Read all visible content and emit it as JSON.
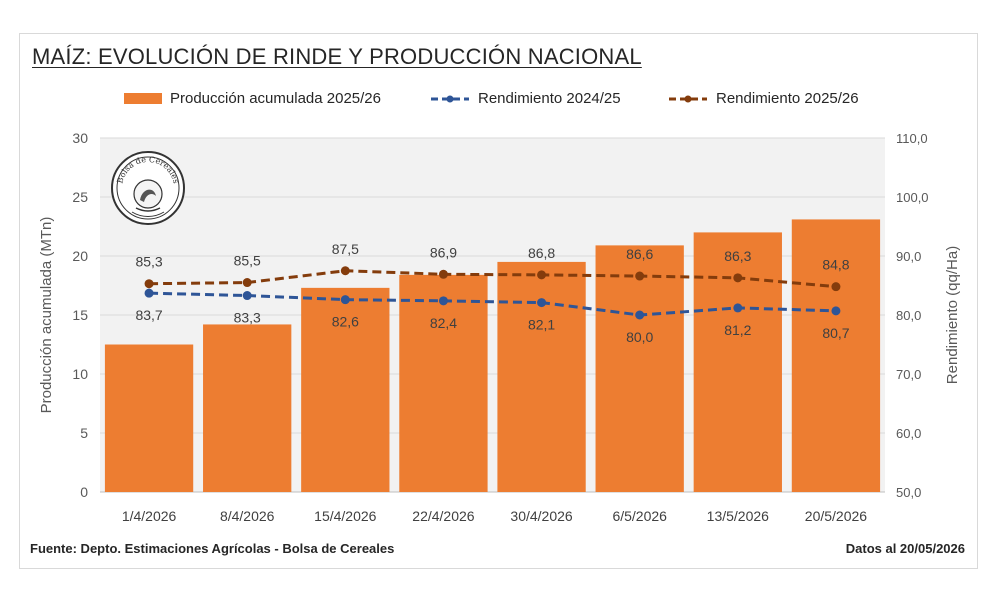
{
  "title": "MAÍZ: EVOLUCIÓN DE RINDE Y PRODUCCIÓN NACIONAL",
  "legend": {
    "bars": "Producción acumulada 2025/26",
    "line1": "Rendimiento 2024/25",
    "line2": "Rendimiento 2025/26"
  },
  "seal_text": "Bolsa de Cereales",
  "footer": {
    "source": "Fuente: Depto. Estimaciones Agrícolas - Bolsa de Cereales",
    "date": "Datos al 20/05/2026"
  },
  "colors": {
    "bars": "#ed7d31",
    "line_2024_25": "#2e5597",
    "line_2025_26": "#843c0c",
    "grid": "#d9d9d9",
    "plot_bg": "#f2f2f2"
  },
  "chart_data": {
    "type": "bar",
    "categories": [
      "1/4/2026",
      "8/4/2026",
      "15/4/2026",
      "22/4/2026",
      "30/4/2026",
      "6/5/2026",
      "13/5/2026",
      "20/5/2026"
    ],
    "ylabel": "Producción acumulada (MTn)",
    "y2label": "Rendimiento (qq/Ha)",
    "ylim": [
      0,
      30
    ],
    "y2lim": [
      50,
      110
    ],
    "yticks": [
      "0",
      "5",
      "10",
      "15",
      "20",
      "25",
      "30"
    ],
    "y2ticks": [
      "50,0",
      "60,0",
      "70,0",
      "80,0",
      "90,0",
      "100,0",
      "110,0"
    ],
    "grid": true,
    "legend_position": "top",
    "series": [
      {
        "name": "Producción acumulada 2025/26",
        "type": "bar",
        "axis": "left",
        "values": [
          12.5,
          14.2,
          17.3,
          18.4,
          19.5,
          20.9,
          22.0,
          23.1
        ]
      },
      {
        "name": "Rendimiento 2024/25",
        "type": "line",
        "axis": "right",
        "values": [
          83.7,
          83.3,
          82.6,
          82.4,
          82.1,
          80.0,
          81.2,
          80.7
        ],
        "labels": [
          "83,7",
          "83,3",
          "82,6",
          "82,4",
          "82,1",
          "80,0",
          "81,2",
          "80,7"
        ]
      },
      {
        "name": "Rendimiento 2025/26",
        "type": "line",
        "axis": "right",
        "values": [
          85.3,
          85.5,
          87.5,
          86.9,
          86.8,
          86.6,
          86.3,
          84.8
        ],
        "labels": [
          "85,3",
          "85,5",
          "87,5",
          "86,9",
          "86,8",
          "86,6",
          "86,3",
          "84,8"
        ]
      }
    ]
  }
}
